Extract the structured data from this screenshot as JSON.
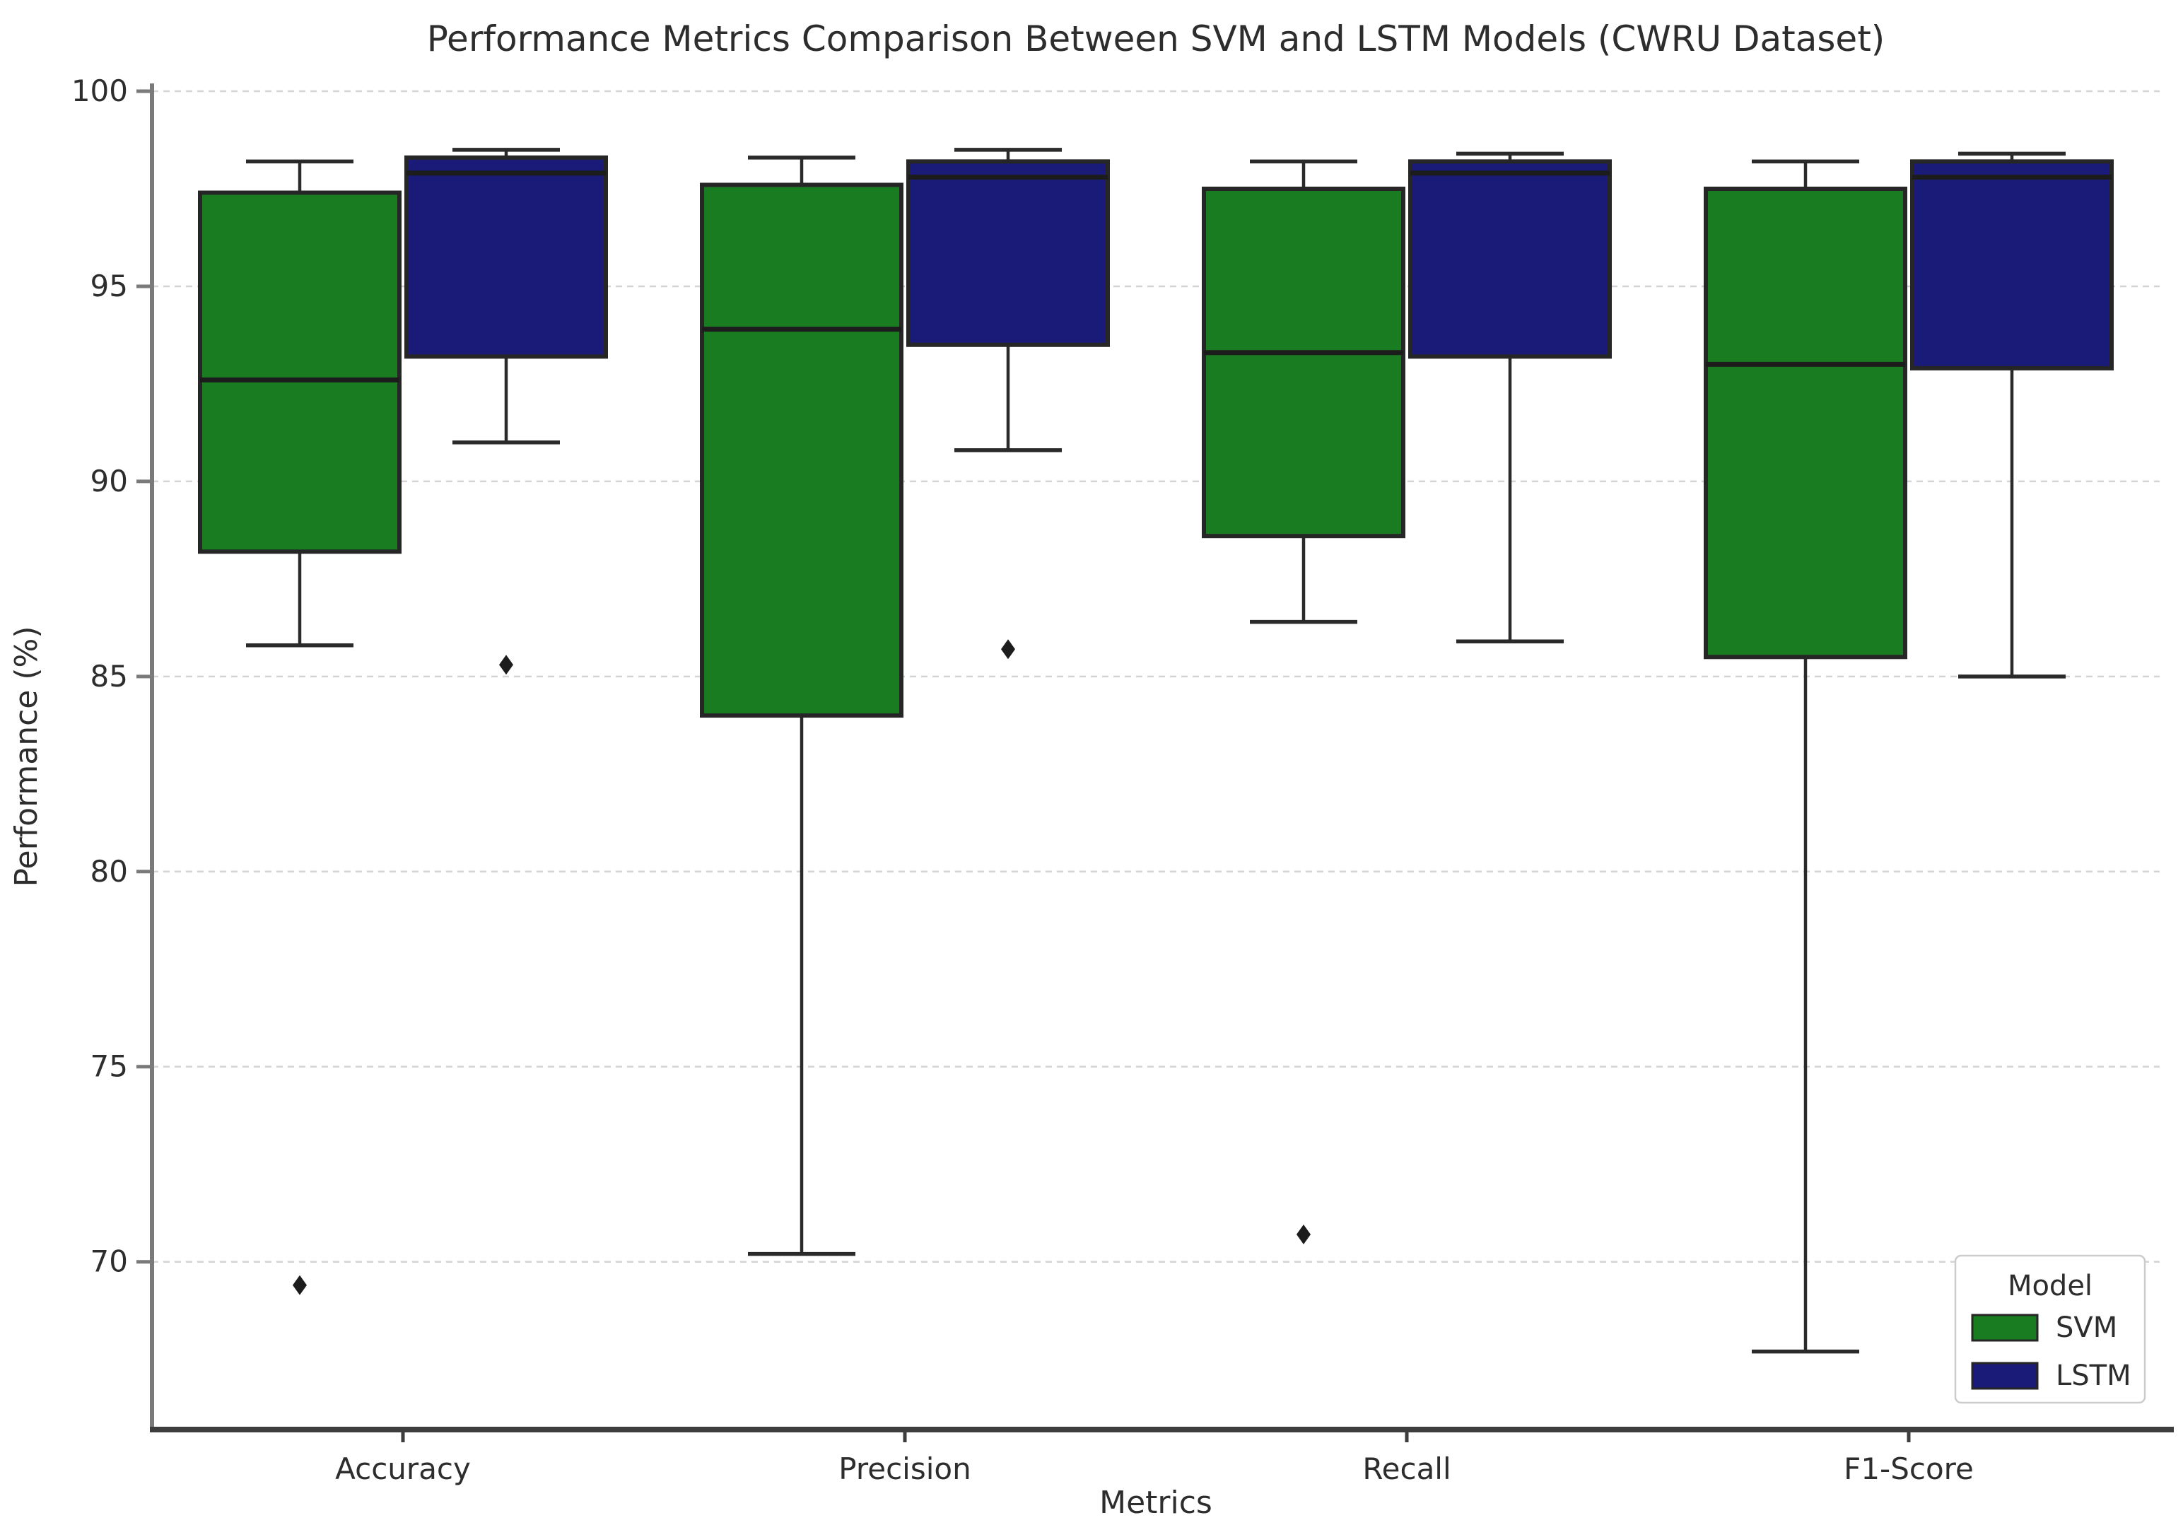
{
  "figure": {
    "background": "#ffffff"
  },
  "chart_data": {
    "type": "boxplot",
    "title": "Performance Metrics Comparison Between SVM and LSTM Models (CWRU Dataset)",
    "xlabel": "Metrics",
    "ylabel": "Performance (%)",
    "categories": [
      "Accuracy",
      "Precision",
      "Recall",
      "F1-Score"
    ],
    "yticks": [
      70,
      75,
      80,
      85,
      90,
      95,
      100
    ],
    "ylim": [
      65.7,
      100.2
    ],
    "grid": true,
    "legend": {
      "title": "Model",
      "position": "lower right",
      "entries": [
        {
          "label": "SVM",
          "color": "#1a7c20"
        },
        {
          "label": "LSTM",
          "color": "#1a1a78"
        }
      ]
    },
    "series": [
      {
        "name": "SVM",
        "color": "#1a7c20",
        "boxes": [
          {
            "category": "Accuracy",
            "whislo": 85.8,
            "q1": 88.2,
            "med": 92.6,
            "q3": 97.4,
            "whishi": 98.2,
            "fliers": [
              69.4
            ]
          },
          {
            "category": "Precision",
            "whislo": 70.2,
            "q1": 84.0,
            "med": 93.9,
            "q3": 97.6,
            "whishi": 98.3,
            "fliers": []
          },
          {
            "category": "Recall",
            "whislo": 86.4,
            "q1": 88.6,
            "med": 93.3,
            "q3": 97.5,
            "whishi": 98.2,
            "fliers": [
              70.7
            ]
          },
          {
            "category": "F1-Score",
            "whislo": 67.7,
            "q1": 85.5,
            "med": 93.0,
            "q3": 97.5,
            "whishi": 98.2,
            "fliers": []
          }
        ]
      },
      {
        "name": "LSTM",
        "color": "#1a1a78",
        "boxes": [
          {
            "category": "Accuracy",
            "whislo": 91.0,
            "q1": 93.2,
            "med": 97.9,
            "q3": 98.3,
            "whishi": 98.5,
            "fliers": [
              85.3
            ]
          },
          {
            "category": "Precision",
            "whislo": 90.8,
            "q1": 93.5,
            "med": 97.8,
            "q3": 98.2,
            "whishi": 98.5,
            "fliers": [
              85.7
            ]
          },
          {
            "category": "Recall",
            "whislo": 85.9,
            "q1": 93.2,
            "med": 97.9,
            "q3": 98.2,
            "whishi": 98.4,
            "fliers": []
          },
          {
            "category": "F1-Score",
            "whislo": 85.0,
            "q1": 92.9,
            "med": 97.8,
            "q3": 98.2,
            "whishi": 98.4,
            "fliers": []
          }
        ]
      }
    ],
    "colors": {
      "box_edge": "#262626",
      "median": "#1c1c1c",
      "whisker": "#2a2a2a",
      "flier": "#1c1c1c",
      "grid": "#d4d4d4",
      "spine_left": "#7a7a7a",
      "spine_bottom": "#3d3d3d",
      "text": "#2d2d2d",
      "legend_border": "#cccccc",
      "legend_bg": "#ffffff"
    }
  }
}
